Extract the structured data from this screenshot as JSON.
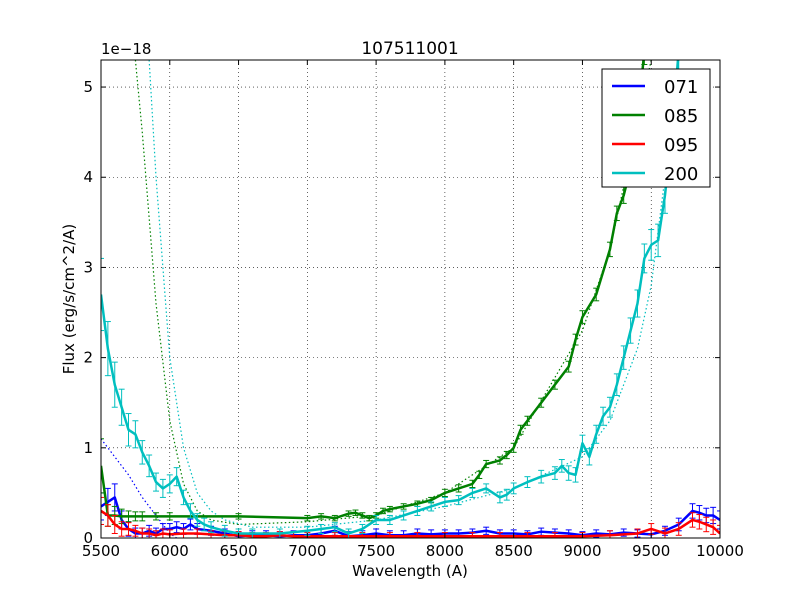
{
  "chart_data": {
    "type": "line",
    "title": "107511001",
    "xlabel": "Wavelength (A)",
    "ylabel": "Flux (erg/s/cm^2/A)",
    "y_offset_label": "1e−18",
    "xlim": [
      5500,
      10000
    ],
    "ylim": [
      0,
      5.3
    ],
    "xticks": [
      5500,
      6000,
      6500,
      7000,
      7500,
      8000,
      8500,
      9000,
      9500,
      10000
    ],
    "yticks": [
      0,
      1,
      2,
      3,
      4,
      5
    ],
    "grid": true,
    "legend_position": "top-right",
    "series": [
      {
        "name": "071",
        "color": "#0000ff",
        "x": [
          5500,
          5550,
          5600,
          5650,
          5700,
          5750,
          5800,
          5850,
          5900,
          5950,
          6000,
          6050,
          6100,
          6150,
          6200,
          6300,
          6400,
          6500,
          6600,
          6700,
          6800,
          6900,
          7000,
          7100,
          7200,
          7300,
          7400,
          7500,
          7600,
          7700,
          7800,
          7900,
          8000,
          8100,
          8200,
          8300,
          8400,
          8500,
          8600,
          8700,
          8800,
          8900,
          9000,
          9100,
          9200,
          9300,
          9400,
          9500,
          9600,
          9700,
          9800,
          9850,
          9900,
          9950,
          10000
        ],
        "y": [
          0.35,
          0.4,
          0.45,
          0.2,
          0.1,
          0.05,
          0.05,
          0.08,
          0.05,
          0.1,
          0.1,
          0.12,
          0.1,
          0.15,
          0.1,
          0.08,
          0.05,
          0.02,
          0.03,
          0.03,
          0.02,
          0.03,
          0.03,
          0.05,
          0.08,
          0.02,
          0.03,
          0.05,
          0.03,
          0.03,
          0.05,
          0.04,
          0.05,
          0.05,
          0.06,
          0.08,
          0.05,
          0.05,
          0.04,
          0.07,
          0.06,
          0.05,
          0.03,
          0.05,
          0.04,
          0.06,
          0.05,
          0.04,
          0.08,
          0.15,
          0.3,
          0.28,
          0.25,
          0.25,
          0.2
        ],
        "errors": [
          0.15,
          0.15,
          0.15,
          0.1,
          0.08,
          0.06,
          0.06,
          0.06,
          0.06,
          0.06,
          0.06,
          0.06,
          0.06,
          0.06,
          0.06,
          0.05,
          0.05,
          0.05,
          0.05,
          0.05,
          0.05,
          0.05,
          0.05,
          0.05,
          0.05,
          0.05,
          0.05,
          0.05,
          0.05,
          0.05,
          0.05,
          0.05,
          0.04,
          0.04,
          0.04,
          0.04,
          0.04,
          0.04,
          0.04,
          0.04,
          0.04,
          0.04,
          0.04,
          0.04,
          0.04,
          0.04,
          0.04,
          0.05,
          0.05,
          0.07,
          0.08,
          0.08,
          0.08,
          0.09,
          0.1
        ],
        "model_x": [
          5500,
          5600,
          5700,
          5800,
          5900,
          6000,
          6050
        ],
        "model_y": [
          1.1,
          0.9,
          0.7,
          0.45,
          0.25,
          0.05,
          0.0
        ]
      },
      {
        "name": "085",
        "color": "#008000",
        "x": [
          5500,
          5550,
          5600,
          5650,
          5700,
          5750,
          5800,
          5900,
          6000,
          6500,
          7000,
          7100,
          7200,
          7300,
          7350,
          7400,
          7450,
          7500,
          7550,
          7600,
          7700,
          7800,
          7900,
          8000,
          8100,
          8200,
          8250,
          8300,
          8400,
          8450,
          8500,
          8550,
          8600,
          8700,
          8800,
          8900,
          8950,
          9000,
          9100,
          9200,
          9250,
          9300,
          9350,
          9400,
          9450
        ],
        "y": [
          0.8,
          0.25,
          0.25,
          0.24,
          0.24,
          0.24,
          0.24,
          0.24,
          0.24,
          0.24,
          0.22,
          0.24,
          0.22,
          0.27,
          0.28,
          0.25,
          0.22,
          0.25,
          0.3,
          0.32,
          0.35,
          0.38,
          0.42,
          0.5,
          0.55,
          0.6,
          0.7,
          0.82,
          0.86,
          0.92,
          1.0,
          1.2,
          1.3,
          1.5,
          1.7,
          1.9,
          2.2,
          2.45,
          2.7,
          3.2,
          3.6,
          3.8,
          4.1,
          4.6,
          5.4
        ],
        "errors": [
          0.3,
          0.12,
          0.1,
          0.08,
          0.06,
          0.05,
          0.05,
          0.04,
          0.04,
          0.03,
          0.03,
          0.03,
          0.03,
          0.03,
          0.03,
          0.03,
          0.03,
          0.03,
          0.03,
          0.03,
          0.03,
          0.03,
          0.03,
          0.04,
          0.04,
          0.04,
          0.04,
          0.04,
          0.04,
          0.04,
          0.05,
          0.05,
          0.05,
          0.05,
          0.05,
          0.06,
          0.06,
          0.07,
          0.07,
          0.08,
          0.08,
          0.09,
          0.1,
          0.12,
          0.15
        ],
        "model_x": [
          5750,
          5800,
          5900,
          6000,
          6100,
          6200,
          6300,
          6500,
          7000,
          7500,
          8000,
          8500,
          9000,
          9200,
          9400,
          9500
        ],
        "model_y": [
          5.3,
          4.5,
          2.6,
          1.3,
          0.6,
          0.3,
          0.2,
          0.15,
          0.18,
          0.25,
          0.5,
          1.0,
          2.3,
          3.2,
          4.6,
          5.3
        ]
      },
      {
        "name": "095",
        "color": "#ff0000",
        "x": [
          5500,
          5550,
          5600,
          5650,
          5700,
          5750,
          5800,
          5850,
          5900,
          5950,
          6000,
          6100,
          6200,
          6300,
          6400,
          6500,
          6600,
          6700,
          6800,
          6900,
          7000,
          7200,
          7400,
          7600,
          7800,
          8000,
          8200,
          8400,
          8600,
          8800,
          9000,
          9200,
          9400,
          9500,
          9600,
          9700,
          9800,
          9850,
          9900,
          9950,
          10000
        ],
        "y": [
          0.3,
          0.25,
          0.15,
          0.1,
          0.1,
          0.08,
          0.05,
          0.05,
          0.03,
          0.05,
          0.04,
          0.05,
          0.05,
          0.04,
          0.03,
          0.03,
          0.02,
          0.02,
          0.03,
          0.02,
          0.02,
          0.02,
          0.02,
          0.02,
          0.02,
          0.02,
          0.02,
          0.02,
          0.02,
          0.02,
          0.02,
          0.03,
          0.05,
          0.1,
          0.05,
          0.1,
          0.2,
          0.18,
          0.15,
          0.12,
          0.05
        ],
        "errors": [
          0.15,
          0.12,
          0.1,
          0.08,
          0.07,
          0.06,
          0.06,
          0.05,
          0.05,
          0.05,
          0.05,
          0.05,
          0.05,
          0.04,
          0.04,
          0.04,
          0.04,
          0.04,
          0.04,
          0.04,
          0.04,
          0.04,
          0.04,
          0.04,
          0.04,
          0.04,
          0.04,
          0.04,
          0.04,
          0.04,
          0.04,
          0.05,
          0.05,
          0.06,
          0.06,
          0.07,
          0.08,
          0.08,
          0.08,
          0.08,
          0.09
        ],
        "model_x": [],
        "model_y": []
      },
      {
        "name": "200",
        "color": "#00bfbf",
        "x": [
          5500,
          5550,
          5600,
          5650,
          5700,
          5750,
          5800,
          5850,
          5900,
          5950,
          6000,
          6050,
          6100,
          6150,
          6200,
          6250,
          6300,
          6400,
          6500,
          6600,
          6800,
          7000,
          7100,
          7200,
          7300,
          7400,
          7500,
          7600,
          7700,
          7800,
          7900,
          8000,
          8100,
          8200,
          8300,
          8400,
          8450,
          8500,
          8600,
          8700,
          8800,
          8850,
          8900,
          8950,
          9000,
          9050,
          9100,
          9150,
          9200,
          9250,
          9300,
          9350,
          9400,
          9450,
          9500,
          9550,
          9600,
          9650,
          9700
        ],
        "y": [
          2.7,
          2.1,
          1.7,
          1.45,
          1.2,
          1.15,
          0.95,
          0.8,
          0.62,
          0.55,
          0.6,
          0.68,
          0.45,
          0.3,
          0.2,
          0.15,
          0.12,
          0.08,
          0.05,
          0.05,
          0.05,
          0.08,
          0.1,
          0.12,
          0.05,
          0.1,
          0.2,
          0.2,
          0.25,
          0.3,
          0.35,
          0.4,
          0.42,
          0.5,
          0.55,
          0.45,
          0.48,
          0.55,
          0.62,
          0.68,
          0.72,
          0.8,
          0.72,
          0.7,
          1.05,
          0.9,
          1.15,
          1.35,
          1.45,
          1.7,
          2.0,
          2.3,
          2.6,
          3.1,
          3.25,
          3.3,
          3.8,
          4.5,
          5.4
        ],
        "errors": [
          0.4,
          0.3,
          0.25,
          0.2,
          0.18,
          0.15,
          0.13,
          0.12,
          0.1,
          0.1,
          0.1,
          0.1,
          0.08,
          0.08,
          0.07,
          0.07,
          0.06,
          0.06,
          0.05,
          0.05,
          0.05,
          0.05,
          0.05,
          0.05,
          0.05,
          0.05,
          0.05,
          0.05,
          0.05,
          0.05,
          0.05,
          0.05,
          0.05,
          0.05,
          0.05,
          0.06,
          0.06,
          0.06,
          0.06,
          0.07,
          0.07,
          0.07,
          0.08,
          0.08,
          0.09,
          0.09,
          0.1,
          0.1,
          0.11,
          0.12,
          0.13,
          0.14,
          0.15,
          0.16,
          0.17,
          0.18,
          0.2,
          0.25,
          0.3
        ],
        "model_x": [
          5850,
          5900,
          6000,
          6100,
          6200,
          6300,
          6400,
          6600,
          7000,
          7500,
          8000,
          8500,
          9000,
          9200,
          9400,
          9500,
          9600,
          9700
        ],
        "model_y": [
          5.3,
          4.0,
          2.0,
          1.0,
          0.5,
          0.3,
          0.2,
          0.12,
          0.12,
          0.2,
          0.35,
          0.55,
          0.9,
          1.3,
          2.1,
          2.8,
          4.0,
          5.3
        ]
      }
    ]
  }
}
